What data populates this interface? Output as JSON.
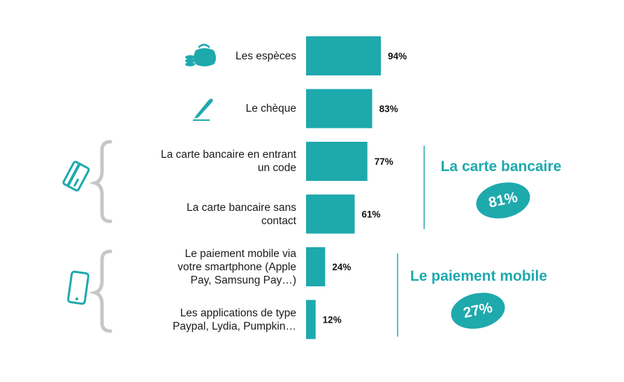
{
  "chart_data": {
    "type": "bar",
    "orientation": "horizontal",
    "categories": [
      "Les espèces",
      "Le chèque",
      "La carte bancaire en entrant un code",
      "La carte bancaire sans contact",
      "Le paiement mobile via votre smartphone (Apple Pay, Samsung Pay…)",
      "Les applications de type Paypal, Lydia, Pumpkin…"
    ],
    "category_lines": [
      [
        "Les espèces"
      ],
      [
        "Le chèque"
      ],
      [
        "La carte bancaire en entrant",
        "un code"
      ],
      [
        "La carte bancaire sans",
        "contact"
      ],
      [
        "Le paiement mobile via",
        "votre smartphone (Apple",
        "Pay, Samsung Pay…)"
      ],
      [
        "Les applications de type",
        "Paypal, Lydia, Pumpkin…"
      ]
    ],
    "values": [
      94,
      83,
      77,
      61,
      24,
      12
    ],
    "value_labels": [
      "94%",
      "83%",
      "77%",
      "61%",
      "24%",
      "12%"
    ],
    "xlim": [
      0,
      100
    ],
    "grid": false,
    "bar_color": "#1ea9ad",
    "icons": [
      "coin-purse-icon",
      "pen-icon",
      "credit-card-icon",
      "smartphone-icon"
    ],
    "groups": [
      {
        "title": "La carte bancaire",
        "value_label": "81%",
        "members": [
          2,
          3
        ]
      },
      {
        "title": "Le paiement mobile",
        "value_label": "27%",
        "members": [
          4,
          5
        ]
      }
    ]
  }
}
